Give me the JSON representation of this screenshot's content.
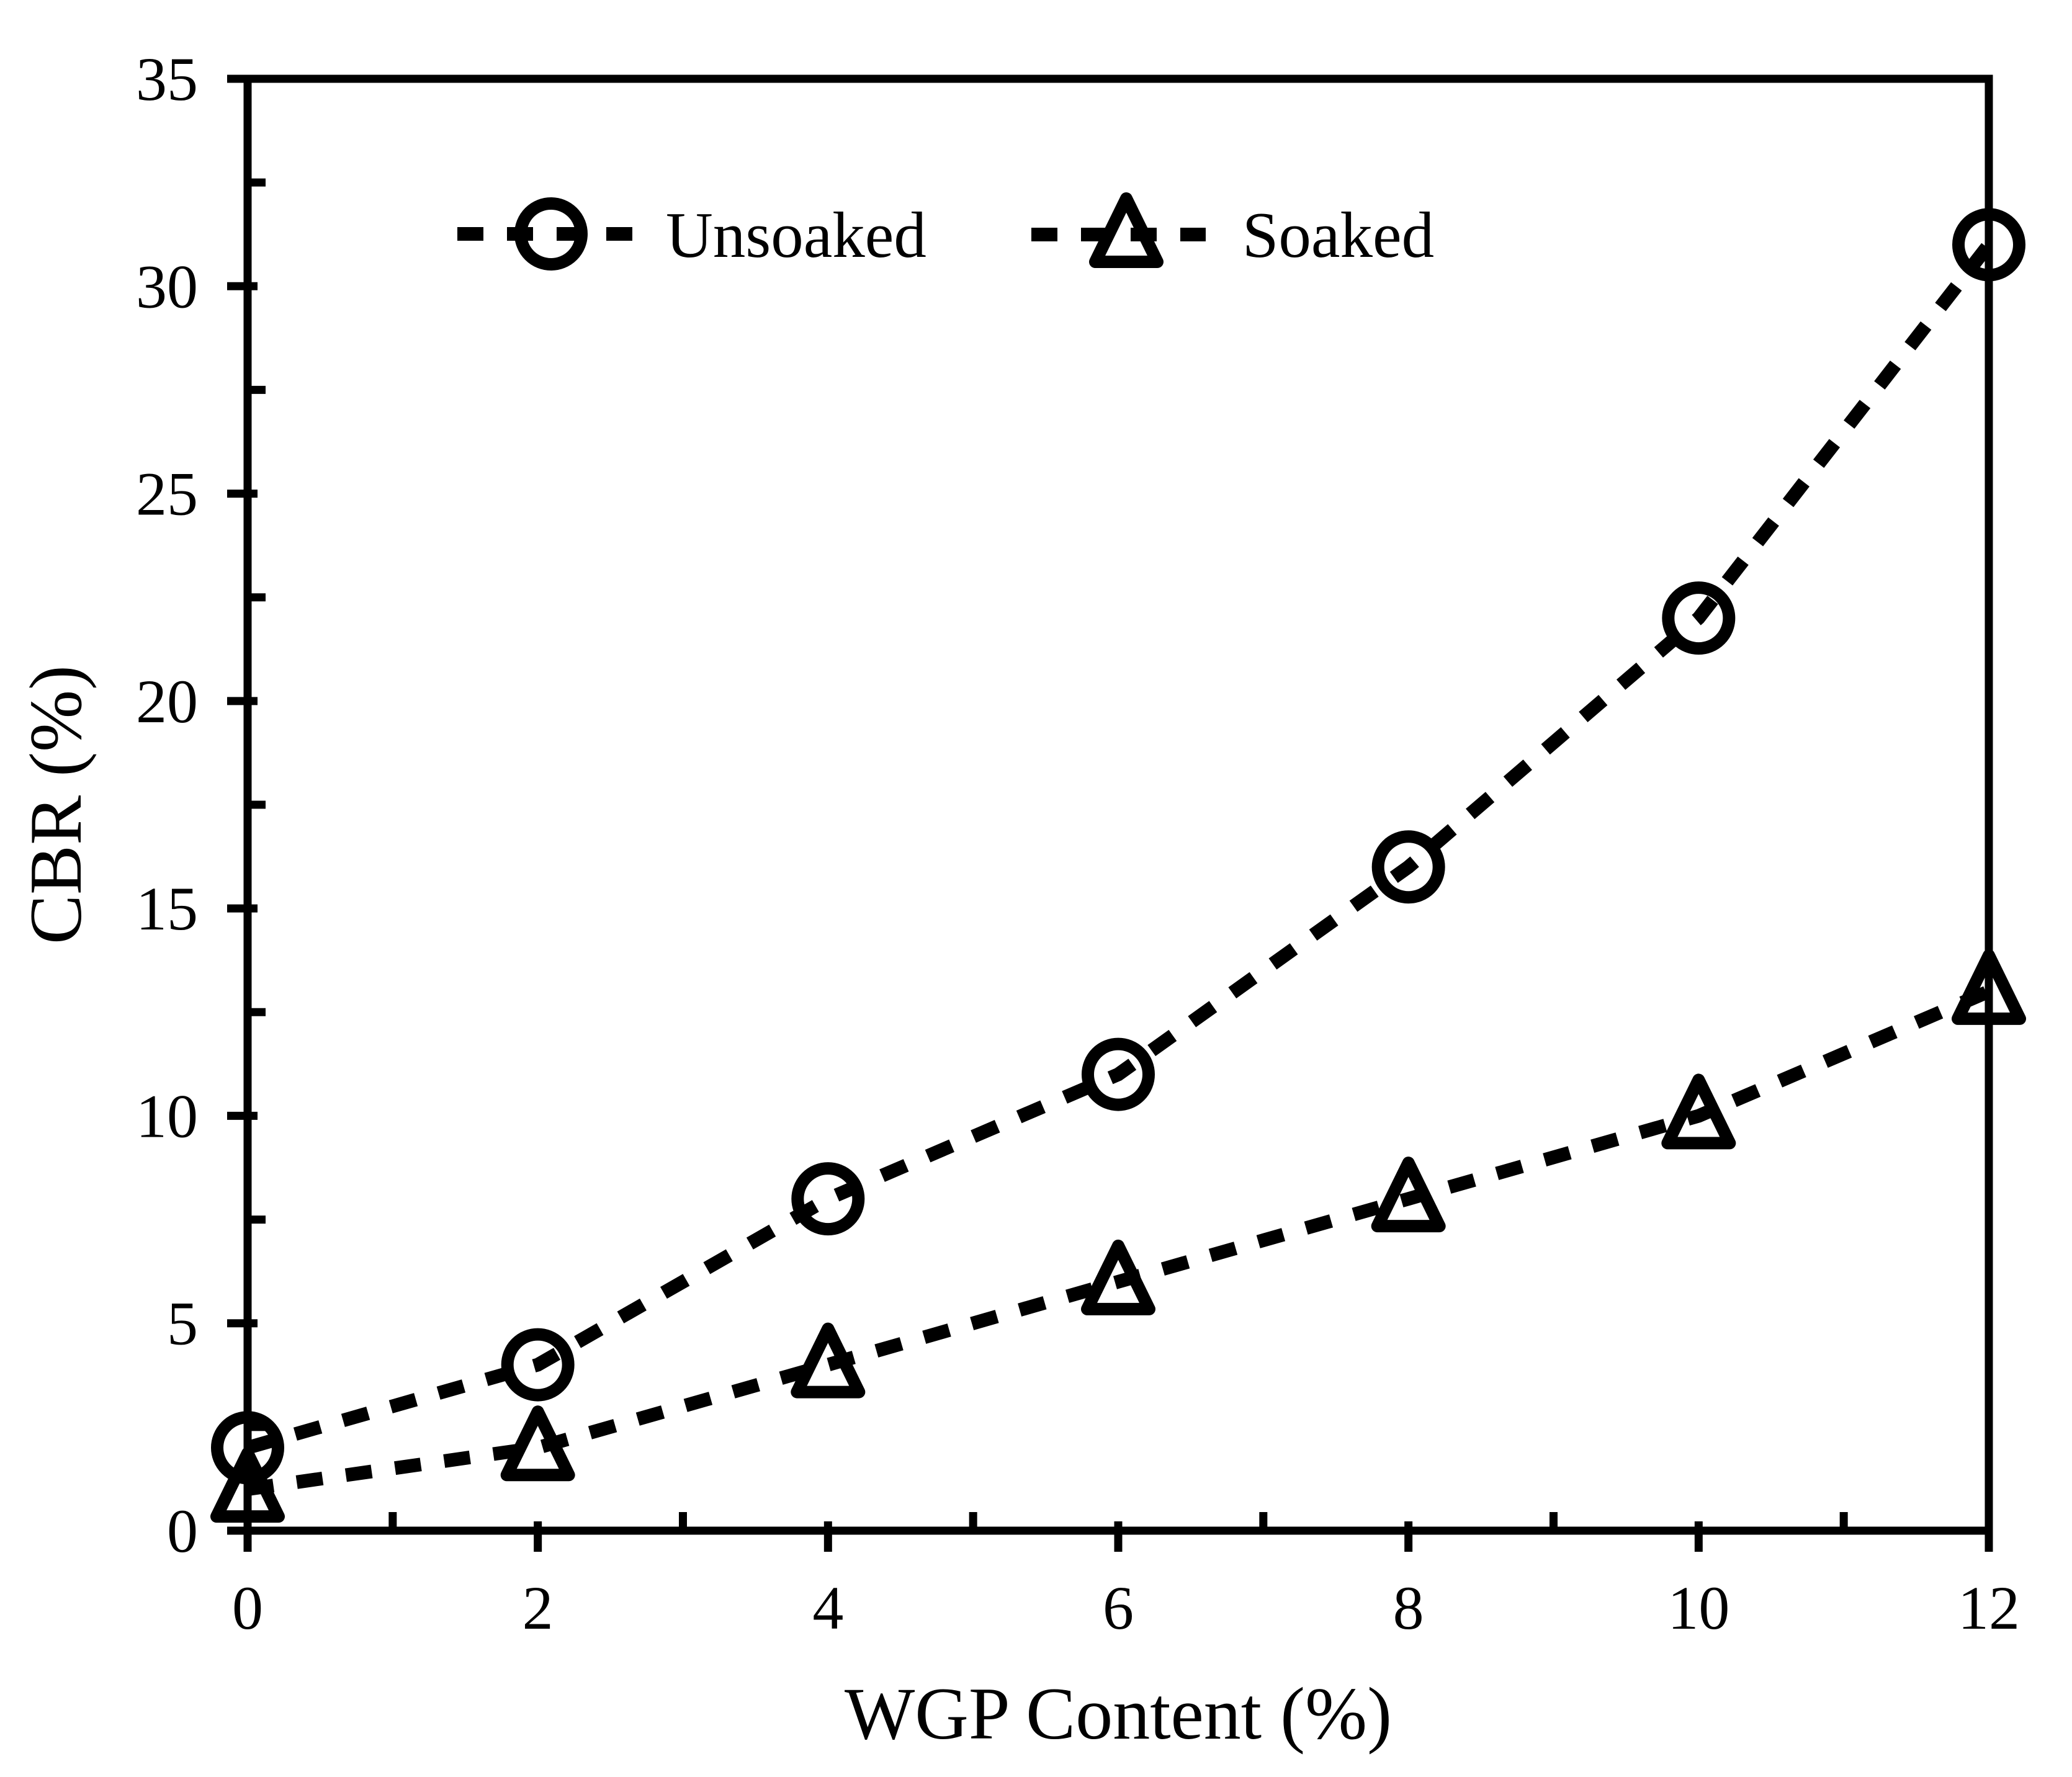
{
  "chart_data": {
    "type": "line",
    "title": "",
    "xlabel": "WGP Content (%)",
    "ylabel": "CBR (%)",
    "x": [
      0,
      2,
      4,
      6,
      8,
      10,
      12
    ],
    "series": [
      {
        "name": "Unsoaked",
        "marker": "circle",
        "values": [
          2,
          4,
          8,
          11,
          16,
          22,
          31
        ]
      },
      {
        "name": "Soaked",
        "marker": "triangle",
        "values": [
          1,
          2,
          4,
          6,
          8,
          10,
          13
        ]
      }
    ],
    "xlim": [
      0,
      12
    ],
    "ylim": [
      0,
      35
    ],
    "x_major_ticks": [
      0,
      2,
      4,
      6,
      8,
      10,
      12
    ],
    "x_minor_ticks": [
      1,
      3,
      5,
      7,
      9,
      11
    ],
    "y_major_ticks": [
      0,
      5,
      10,
      15,
      20,
      25,
      30,
      35
    ],
    "y_minor_step": 2.5,
    "line_style": "dashed",
    "grid": false,
    "legend_position": "top-inside",
    "color": "#000000",
    "background": "#ffffff"
  }
}
